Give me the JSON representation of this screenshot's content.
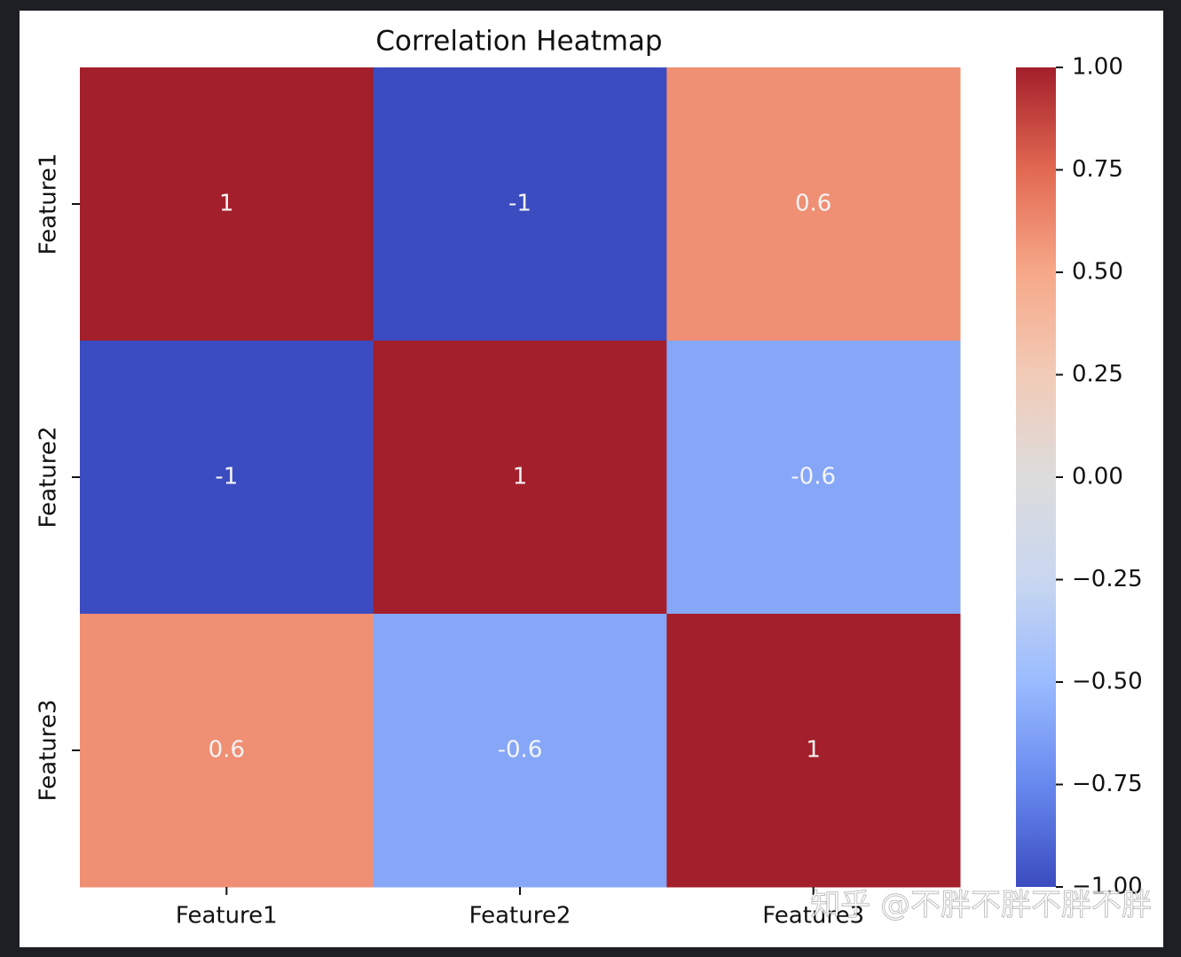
{
  "chart_data": {
    "type": "heatmap",
    "title": "Correlation Heatmap",
    "x_categories": [
      "Feature1",
      "Feature2",
      "Feature3"
    ],
    "y_categories": [
      "Feature1",
      "Feature2",
      "Feature3"
    ],
    "values": [
      [
        1,
        -1,
        0.6
      ],
      [
        -1,
        1,
        -0.6
      ],
      [
        0.6,
        -0.6,
        1
      ]
    ],
    "colormap": [
      "#3b4cc0",
      "#6788ee",
      "#9abbff",
      "#c9d7f0",
      "#dddcdc",
      "#f2cbb7",
      "#f7a889",
      "#e26952",
      "#a31f2b"
    ],
    "clim": [
      -1,
      1
    ],
    "cticks": [
      {
        "value": 1,
        "label": "1.00"
      },
      {
        "value": 0.75,
        "label": "0.75"
      },
      {
        "value": 0.5,
        "label": "0.50"
      },
      {
        "value": 0.25,
        "label": "0.25"
      },
      {
        "value": 0,
        "label": "0.00"
      },
      {
        "value": -0.25,
        "label": "−0.25"
      },
      {
        "value": -0.5,
        "label": "−0.50"
      },
      {
        "value": -0.75,
        "label": "−0.75"
      },
      {
        "value": -1,
        "label": "−1.00"
      }
    ],
    "watermark": "知乎 @不胖不胖不胖不胖"
  }
}
